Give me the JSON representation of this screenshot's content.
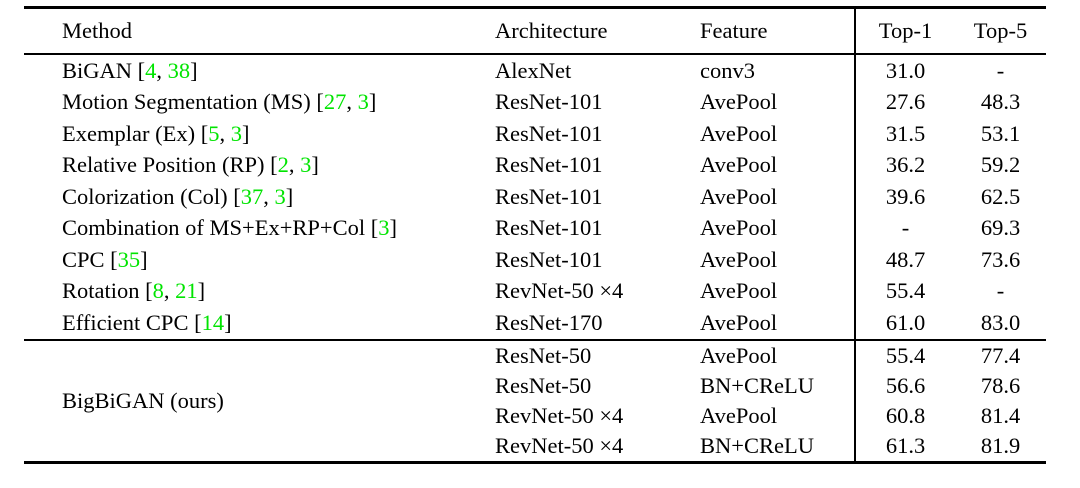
{
  "colors": {
    "citation_green": "#00e400",
    "text": "#000000",
    "rules": "#000000"
  },
  "header": {
    "method": "Method",
    "architecture": "Architecture",
    "feature": "Feature",
    "top1": "Top-1",
    "top5": "Top-5"
  },
  "rows": [
    {
      "method": [
        {
          "t": "BiGAN ["
        },
        {
          "t": "4",
          "g": 1
        },
        {
          "t": ", "
        },
        {
          "t": "38",
          "g": 1
        },
        {
          "t": "]"
        }
      ],
      "architecture": "AlexNet",
      "feature": "conv3",
      "top1": "31.0",
      "top5": "-"
    },
    {
      "method": [
        {
          "t": "Motion Segmentation (MS) ["
        },
        {
          "t": "27",
          "g": 1
        },
        {
          "t": ", "
        },
        {
          "t": "3",
          "g": 1
        },
        {
          "t": "]"
        }
      ],
      "architecture": "ResNet-101",
      "feature": "AvePool",
      "top1": "27.6",
      "top5": "48.3"
    },
    {
      "method": [
        {
          "t": "Exemplar (Ex) ["
        },
        {
          "t": "5",
          "g": 1
        },
        {
          "t": ", "
        },
        {
          "t": "3",
          "g": 1
        },
        {
          "t": "]"
        }
      ],
      "architecture": "ResNet-101",
      "feature": "AvePool",
      "top1": "31.5",
      "top5": "53.1"
    },
    {
      "method": [
        {
          "t": "Relative Position (RP) ["
        },
        {
          "t": "2",
          "g": 1
        },
        {
          "t": ", "
        },
        {
          "t": "3",
          "g": 1
        },
        {
          "t": "]"
        }
      ],
      "architecture": "ResNet-101",
      "feature": "AvePool",
      "top1": "36.2",
      "top5": "59.2"
    },
    {
      "method": [
        {
          "t": "Colorization (Col) ["
        },
        {
          "t": "37",
          "g": 1
        },
        {
          "t": ", "
        },
        {
          "t": "3",
          "g": 1
        },
        {
          "t": "]"
        }
      ],
      "architecture": "ResNet-101",
      "feature": "AvePool",
      "top1": "39.6",
      "top5": "62.5"
    },
    {
      "method": [
        {
          "t": "Combination of MS+Ex+RP+Col ["
        },
        {
          "t": "3",
          "g": 1
        },
        {
          "t": "]"
        }
      ],
      "architecture": "ResNet-101",
      "feature": "AvePool",
      "top1": "-",
      "top5": "69.3"
    },
    {
      "method": [
        {
          "t": "CPC ["
        },
        {
          "t": "35",
          "g": 1
        },
        {
          "t": "]"
        }
      ],
      "architecture": "ResNet-101",
      "feature": "AvePool",
      "top1": "48.7",
      "top5": "73.6"
    },
    {
      "method": [
        {
          "t": "Rotation ["
        },
        {
          "t": "8",
          "g": 1
        },
        {
          "t": ", "
        },
        {
          "t": "21",
          "g": 1
        },
        {
          "t": "]"
        }
      ],
      "architecture": "RevNet-50 ×4",
      "feature": "AvePool",
      "top1": "55.4",
      "top5": "-"
    },
    {
      "method": [
        {
          "t": "Efficient CPC ["
        },
        {
          "t": "14",
          "g": 1
        },
        {
          "t": "]"
        }
      ],
      "architecture": "ResNet-170",
      "feature": "AvePool",
      "top1": "61.0",
      "top5": "83.0"
    }
  ],
  "group": {
    "label": "BigBiGAN (ours)",
    "rows": [
      {
        "architecture": "ResNet-50",
        "feature": "AvePool",
        "top1": "55.4",
        "top5": "77.4"
      },
      {
        "architecture": "ResNet-50",
        "feature": "BN+CReLU",
        "top1": "56.6",
        "top5": "78.6"
      },
      {
        "architecture": "RevNet-50 ×4",
        "feature": "AvePool",
        "top1": "60.8",
        "top5": "81.4"
      },
      {
        "architecture": "RevNet-50 ×4",
        "feature": "BN+CReLU",
        "top1": "61.3",
        "top5": "81.9"
      }
    ]
  }
}
